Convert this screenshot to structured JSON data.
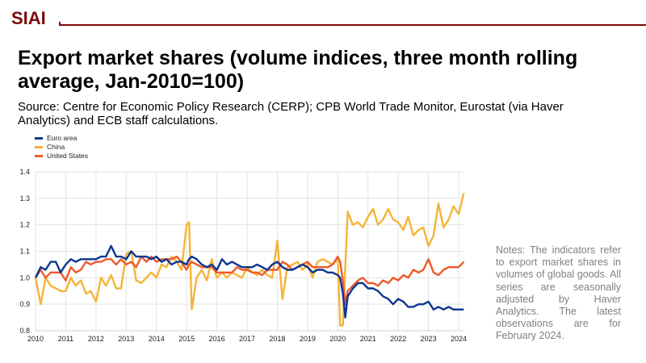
{
  "brand": {
    "logo": "SIAI"
  },
  "slide": {
    "title": "Export market shares (volume indices, three month rolling average, Jan-2010=100)",
    "source": "Source: Centre for Economic Policy Research (CERP); CPB World Trade Monitor, Eurostat (via Haver Analytics) and ECB staff calculations.",
    "notes": "Notes: The indicators refer to export market shares in volumes of global goods. All series are seasonally adjusted by Haver Analytics. The latest observations are for February 2024."
  },
  "chart_data": {
    "type": "line",
    "title": "Export market shares (volume indices, three month rolling average, Jan-2010=100)",
    "xlabel": "",
    "ylabel": "",
    "xlim": [
      2010,
      2024.17
    ],
    "ylim": [
      0.8,
      1.4
    ],
    "grid": true,
    "legend_position": "top-left",
    "x_ticks": [
      "2010",
      "2011",
      "2012",
      "2013",
      "2014",
      "2015",
      "2016",
      "2017",
      "2018",
      "2019",
      "2020",
      "2021",
      "2022",
      "2023",
      "2024"
    ],
    "y_ticks": [
      "0.8",
      "0.9",
      "1.0",
      "1.1",
      "1.2",
      "1.3",
      "1.4"
    ],
    "x": [
      2010.0,
      2010.17,
      2010.33,
      2010.5,
      2010.67,
      2010.83,
      2011.0,
      2011.17,
      2011.33,
      2011.5,
      2011.67,
      2011.83,
      2012.0,
      2012.17,
      2012.33,
      2012.5,
      2012.67,
      2012.83,
      2013.0,
      2013.17,
      2013.33,
      2013.5,
      2013.67,
      2013.83,
      2014.0,
      2014.17,
      2014.33,
      2014.5,
      2014.67,
      2014.83,
      2015.0,
      2015.08,
      2015.17,
      2015.33,
      2015.5,
      2015.67,
      2015.83,
      2016.0,
      2016.17,
      2016.33,
      2016.5,
      2016.67,
      2016.83,
      2017.0,
      2017.17,
      2017.33,
      2017.5,
      2017.67,
      2017.83,
      2018.0,
      2018.17,
      2018.33,
      2018.5,
      2018.67,
      2018.83,
      2019.0,
      2019.17,
      2019.33,
      2019.5,
      2019.67,
      2019.83,
      2020.0,
      2020.08,
      2020.17,
      2020.25,
      2020.33,
      2020.5,
      2020.67,
      2020.83,
      2021.0,
      2021.17,
      2021.33,
      2021.5,
      2021.67,
      2021.83,
      2022.0,
      2022.17,
      2022.33,
      2022.5,
      2022.67,
      2022.83,
      2023.0,
      2023.17,
      2023.33,
      2023.5,
      2023.67,
      2023.83,
      2024.0,
      2024.17
    ],
    "series": [
      {
        "name": "Euro area",
        "color": "#0d3591",
        "values": [
          1.0,
          1.04,
          1.03,
          1.06,
          1.06,
          1.02,
          1.05,
          1.07,
          1.06,
          1.07,
          1.07,
          1.07,
          1.07,
          1.08,
          1.08,
          1.12,
          1.08,
          1.08,
          1.07,
          1.1,
          1.08,
          1.08,
          1.08,
          1.07,
          1.08,
          1.06,
          1.07,
          1.05,
          1.06,
          1.06,
          1.05,
          1.07,
          1.08,
          1.07,
          1.05,
          1.04,
          1.05,
          1.03,
          1.07,
          1.05,
          1.06,
          1.05,
          1.04,
          1.04,
          1.04,
          1.05,
          1.04,
          1.03,
          1.05,
          1.06,
          1.04,
          1.03,
          1.03,
          1.04,
          1.05,
          1.04,
          1.02,
          1.03,
          1.03,
          1.02,
          1.02,
          1.01,
          1.0,
          0.94,
          0.85,
          0.93,
          0.96,
          0.98,
          0.98,
          0.96,
          0.96,
          0.95,
          0.93,
          0.92,
          0.9,
          0.92,
          0.91,
          0.89,
          0.89,
          0.9,
          0.9,
          0.91,
          0.88,
          0.89,
          0.88,
          0.89,
          0.88,
          0.88,
          0.88
        ]
      },
      {
        "name": "China",
        "color": "#f5b436",
        "values": [
          1.0,
          0.9,
          1.0,
          0.97,
          0.96,
          0.95,
          0.95,
          1.0,
          0.97,
          0.99,
          0.94,
          0.95,
          0.91,
          1.0,
          0.97,
          1.01,
          0.96,
          0.96,
          1.09,
          1.1,
          0.99,
          0.98,
          1.0,
          1.02,
          1.0,
          1.05,
          1.04,
          1.08,
          1.06,
          1.03,
          1.2,
          1.21,
          0.88,
          1.0,
          1.03,
          0.99,
          1.07,
          1.0,
          1.02,
          1.0,
          1.02,
          1.01,
          1.0,
          1.04,
          1.02,
          1.01,
          1.03,
          1.01,
          1.0,
          1.14,
          0.92,
          1.04,
          1.05,
          1.06,
          1.03,
          1.05,
          1.0,
          1.06,
          1.07,
          1.06,
          1.05,
          1.07,
          0.82,
          0.82,
          1.04,
          1.25,
          1.2,
          1.21,
          1.19,
          1.23,
          1.26,
          1.2,
          1.22,
          1.26,
          1.22,
          1.21,
          1.18,
          1.23,
          1.16,
          1.18,
          1.19,
          1.12,
          1.16,
          1.28,
          1.19,
          1.22,
          1.27,
          1.24,
          1.32
        ]
      },
      {
        "name": "United States",
        "color": "#ec5a2a",
        "values": [
          1.0,
          1.03,
          1.0,
          1.02,
          1.02,
          1.02,
          0.99,
          1.04,
          1.02,
          1.03,
          1.06,
          1.05,
          1.06,
          1.06,
          1.07,
          1.07,
          1.05,
          1.07,
          1.05,
          1.06,
          1.04,
          1.08,
          1.06,
          1.08,
          1.06,
          1.07,
          1.07,
          1.07,
          1.08,
          1.06,
          1.03,
          1.05,
          1.06,
          1.05,
          1.04,
          1.04,
          1.04,
          1.02,
          1.02,
          1.02,
          1.02,
          1.04,
          1.03,
          1.03,
          1.02,
          1.02,
          1.01,
          1.03,
          1.03,
          1.03,
          1.06,
          1.05,
          1.03,
          1.04,
          1.05,
          1.06,
          1.04,
          1.04,
          1.04,
          1.04,
          1.05,
          1.08,
          1.06,
          0.99,
          0.9,
          0.95,
          0.97,
          0.99,
          1.0,
          0.98,
          0.98,
          0.97,
          0.99,
          0.98,
          1.0,
          0.99,
          1.01,
          1.0,
          1.03,
          1.02,
          1.03,
          1.07,
          1.02,
          1.01,
          1.03,
          1.04,
          1.04,
          1.04,
          1.06
        ]
      }
    ]
  }
}
